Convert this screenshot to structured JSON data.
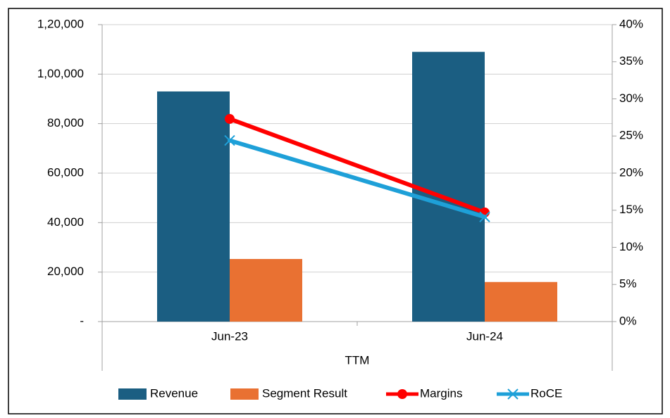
{
  "chart_data": {
    "type": "bar_line",
    "categories": [
      "Jun-23",
      "Jun-24"
    ],
    "xlabel": "TTM",
    "series": [
      {
        "name": "Revenue",
        "type": "bar",
        "color": "#1b5e82",
        "values": [
          93000,
          109000
        ]
      },
      {
        "name": "Segment Result",
        "type": "bar",
        "color": "#e97132",
        "values": [
          25300,
          16000
        ]
      },
      {
        "name": "Margins",
        "type": "line",
        "axis": "y2",
        "marker": "circle",
        "color": "#ff0000",
        "values": [
          27.3,
          14.7
        ]
      },
      {
        "name": "RoCE",
        "type": "line",
        "axis": "y2",
        "marker": "x",
        "color": "#1ea0d8",
        "values": [
          24.4,
          14.1
        ]
      }
    ],
    "ylim": [
      0,
      120000
    ],
    "yticks": [
      {
        "value": 0,
        "label": "-"
      },
      {
        "value": 20000,
        "label": "20,000"
      },
      {
        "value": 40000,
        "label": "40,000"
      },
      {
        "value": 60000,
        "label": "60,000"
      },
      {
        "value": 80000,
        "label": "80,000"
      },
      {
        "value": 100000,
        "label": "1,00,000"
      },
      {
        "value": 120000,
        "label": "1,20,000"
      }
    ],
    "y2lim": [
      0,
      40
    ],
    "y2ticks": [
      {
        "value": 0,
        "label": "0%"
      },
      {
        "value": 5,
        "label": "5%"
      },
      {
        "value": 10,
        "label": "10%"
      },
      {
        "value": 15,
        "label": "15%"
      },
      {
        "value": 20,
        "label": "20%"
      },
      {
        "value": 25,
        "label": "25%"
      },
      {
        "value": 30,
        "label": "30%"
      },
      {
        "value": 35,
        "label": "35%"
      },
      {
        "value": 40,
        "label": "40%"
      }
    ],
    "grid": true,
    "legend": "bottom"
  }
}
